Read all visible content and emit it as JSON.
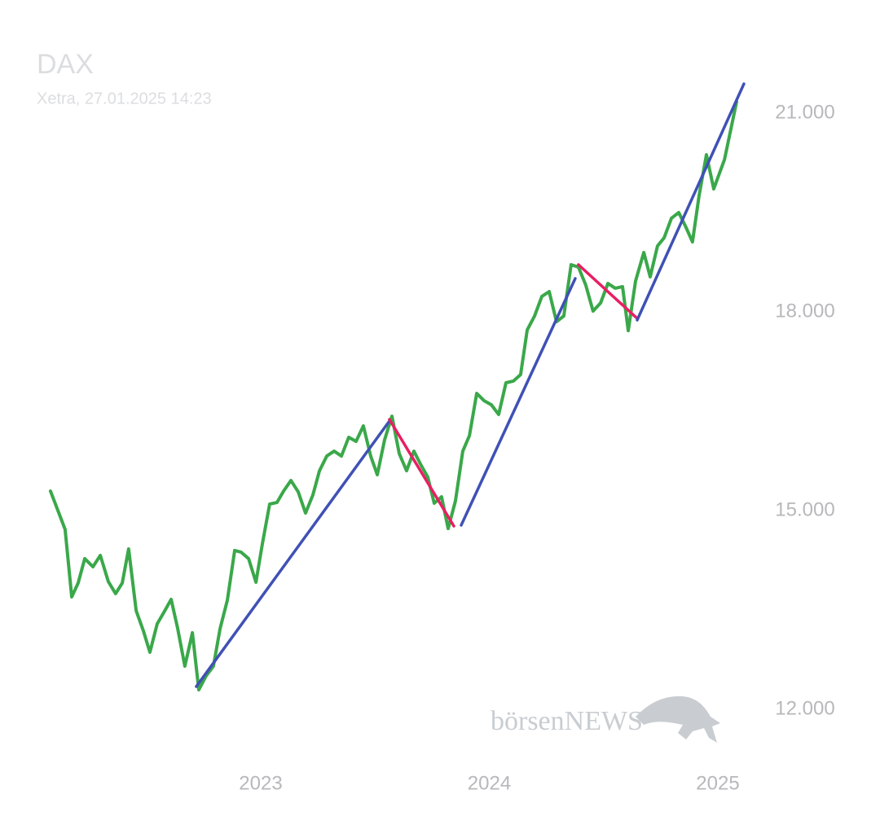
{
  "chart_data": {
    "type": "line",
    "title": "DAX",
    "subtitle": "Xetra, 27.01.2025 14:23",
    "watermark": "börsenNEWS",
    "xlim": [
      2022.0,
      2025.2
    ],
    "xticks": [
      2023,
      2024,
      2025
    ],
    "ylim": [
      11000,
      21500
    ],
    "yticks": [
      {
        "value": 12000,
        "label": "12.000"
      },
      {
        "value": 15000,
        "label": "15.000"
      },
      {
        "value": 18000,
        "label": "18.000"
      },
      {
        "value": 21000,
        "label": "21.000"
      }
    ],
    "series": [
      {
        "color": "#3aa84a",
        "x": [
          2022.08,
          2022.144,
          2022.173,
          2022.201,
          2022.23,
          2022.266,
          2022.298,
          2022.333,
          2022.365,
          2022.394,
          2022.422,
          2022.455,
          2022.487,
          2022.515,
          2022.547,
          2022.576,
          2022.608,
          2022.636,
          2022.668,
          2022.701,
          2022.729,
          2022.761,
          2022.793,
          2022.822,
          2022.854,
          2022.886,
          2022.914,
          2022.947,
          2022.979,
          2023.007,
          2023.039,
          2023.071,
          2023.1,
          2023.132,
          2023.164,
          2023.196,
          2023.228,
          2023.257,
          2023.289,
          2023.321,
          2023.353,
          2023.385,
          2023.417,
          2023.449,
          2023.481,
          2023.51,
          2023.542,
          2023.574,
          2023.606,
          2023.638,
          2023.67,
          2023.699,
          2023.731,
          2023.759,
          2023.791,
          2023.82,
          2023.852,
          2023.884,
          2023.913,
          2023.945,
          2023.977,
          2024.009,
          2024.041,
          2024.073,
          2024.105,
          2024.137,
          2024.166,
          2024.198,
          2024.23,
          2024.262,
          2024.294,
          2024.326,
          2024.358,
          2024.39,
          2024.422,
          2024.454,
          2024.487,
          2024.519,
          2024.551,
          2024.583,
          2024.608,
          2024.64,
          2024.676,
          2024.704,
          2024.736,
          2024.765,
          2024.797,
          2024.829,
          2024.857,
          2024.889,
          2024.918,
          2024.95,
          2024.982,
          2025.029,
          2025.082
        ],
        "values": [
          15295,
          14717,
          13697,
          13906,
          14275,
          14152,
          14324,
          13930,
          13746,
          13906,
          14422,
          13488,
          13180,
          12861,
          13291,
          13463,
          13660,
          13230,
          12652,
          13156,
          12295,
          12504,
          12652,
          13217,
          13648,
          14398,
          14373,
          14275,
          13918,
          14496,
          15098,
          15123,
          15295,
          15455,
          15283,
          14963,
          15234,
          15602,
          15824,
          15898,
          15824,
          16107,
          16045,
          16279,
          15824,
          15541,
          16070,
          16426,
          15861,
          15602,
          15898,
          15701,
          15504,
          15111,
          15209,
          14729,
          15148,
          15898,
          16131,
          16770,
          16660,
          16598,
          16451,
          16930,
          16955,
          17053,
          17729,
          17938,
          18234,
          18307,
          17852,
          17938,
          18713,
          18676,
          18406,
          18012,
          18135,
          18430,
          18357,
          18381,
          17717,
          18467,
          18897,
          18529,
          18996,
          19119,
          19414,
          19500,
          19303,
          19057,
          19758,
          20373,
          19857,
          20299,
          21172
        ]
      }
    ],
    "trendlines": [
      {
        "color": "#3f51b5",
        "x": [
          2022.718,
          2023.563
        ],
        "values": [
          12344,
          16352
        ]
      },
      {
        "color": "#e91e63",
        "x": [
          2023.563,
          2023.845
        ],
        "values": [
          16377,
          14766
        ]
      },
      {
        "color": "#3f51b5",
        "x": [
          2023.877,
          2024.376
        ],
        "values": [
          14779,
          18504
        ]
      },
      {
        "color": "#e91e63",
        "x": [
          2024.39,
          2024.647
        ],
        "values": [
          18713,
          17902
        ]
      },
      {
        "color": "#3f51b5",
        "x": [
          2024.647,
          2025.114
        ],
        "values": [
          17877,
          21443
        ]
      }
    ]
  }
}
